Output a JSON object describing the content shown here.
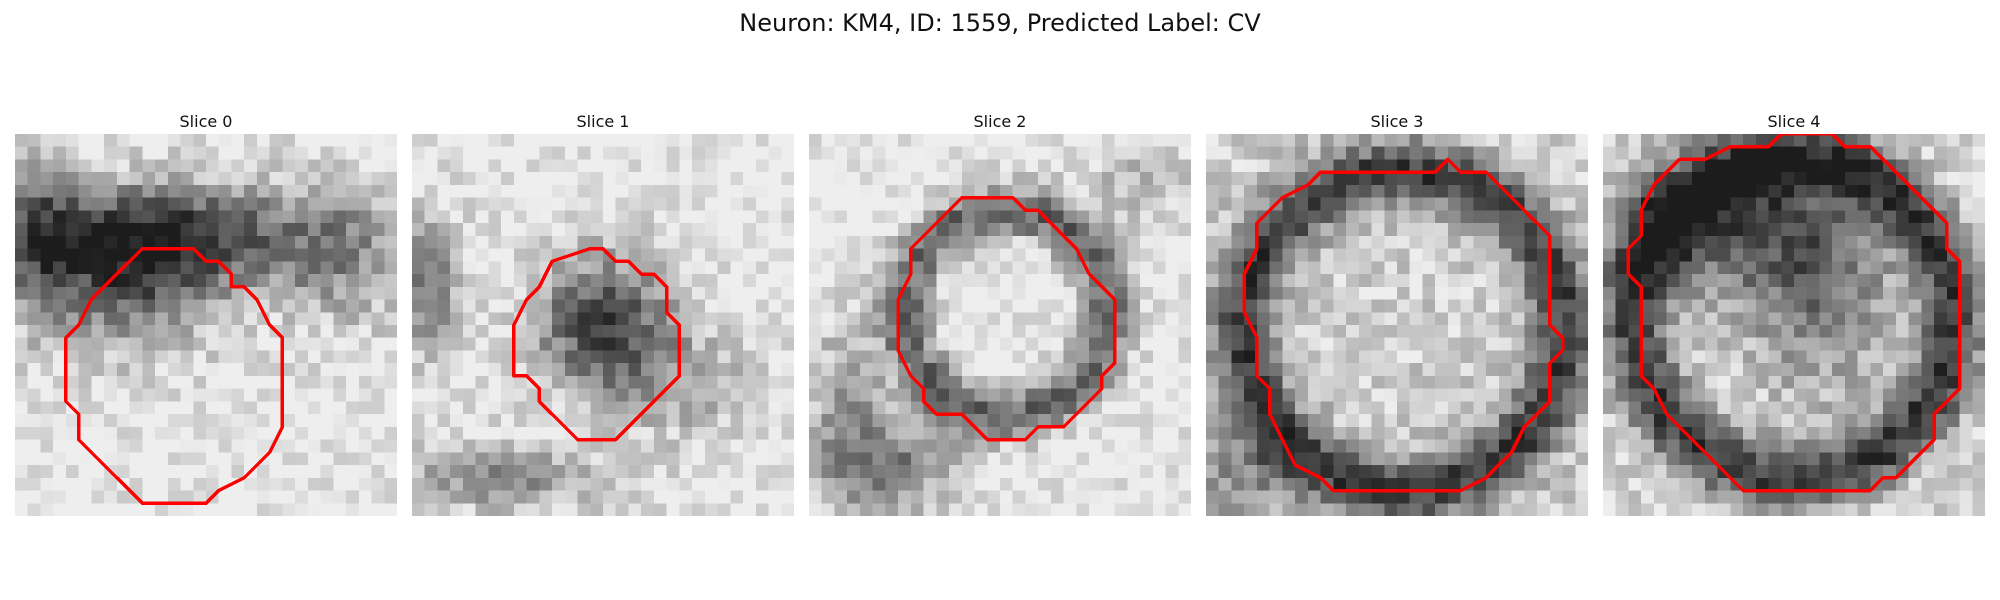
{
  "figure": {
    "title": "Neuron: KM4, ID: 1559, Predicted Label: CV"
  },
  "overlay": {
    "contour_color": "#ff0000"
  },
  "slices": [
    {
      "label": "Slice 0"
    },
    {
      "label": "Slice 1"
    },
    {
      "label": "Slice 2"
    },
    {
      "label": "Slice 3"
    },
    {
      "label": "Slice 4"
    }
  ]
}
